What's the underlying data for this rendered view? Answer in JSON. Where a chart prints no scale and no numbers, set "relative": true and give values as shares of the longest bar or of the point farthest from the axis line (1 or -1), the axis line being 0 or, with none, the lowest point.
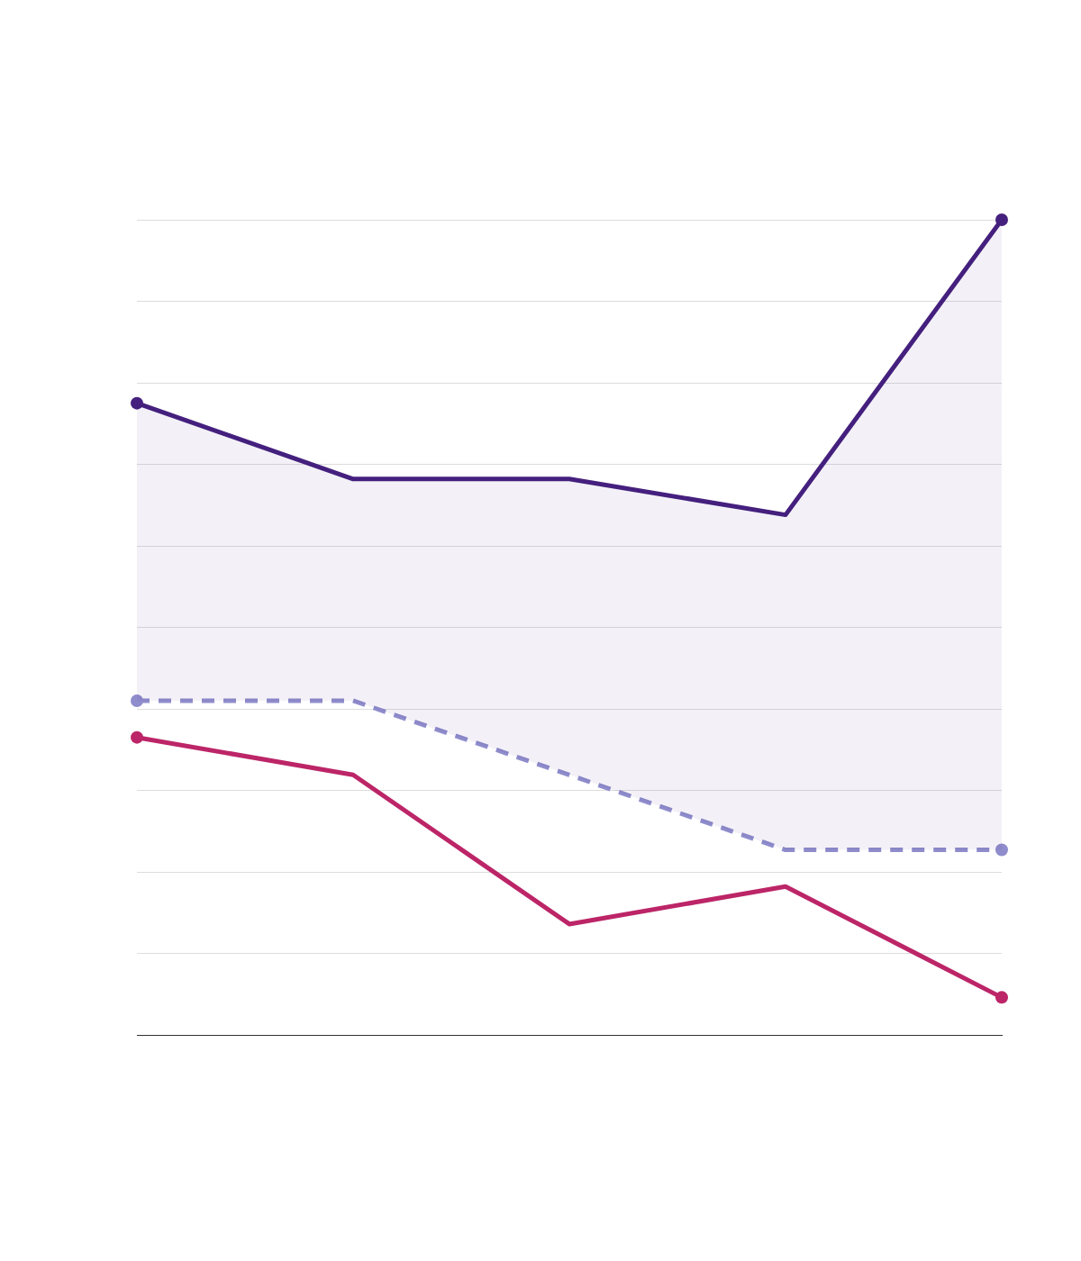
{
  "chart_data": {
    "type": "line",
    "relative": true,
    "categories": [
      null,
      null,
      null,
      null,
      null
    ],
    "series": [
      {
        "color": "#45207e",
        "values": [
          0.775,
          0.682,
          0.682,
          0.638,
          1
        ],
        "lower": [
          0.41,
          0.41,
          0.319,
          0.227,
          0.227
        ],
        "upper": [
          0.775,
          0.682,
          0.682,
          0.638,
          1
        ]
      },
      {
        "color": "#8f8dcc",
        "values": [
          0.41,
          0.41,
          0.319,
          0.227,
          0.227
        ],
        "line_style": "dashed"
      },
      {
        "color": "#bc2567",
        "values": [
          0.365,
          0.319,
          0.136,
          0.182,
          0.046
        ]
      }
    ],
    "grid": "y",
    "legend": false
  }
}
